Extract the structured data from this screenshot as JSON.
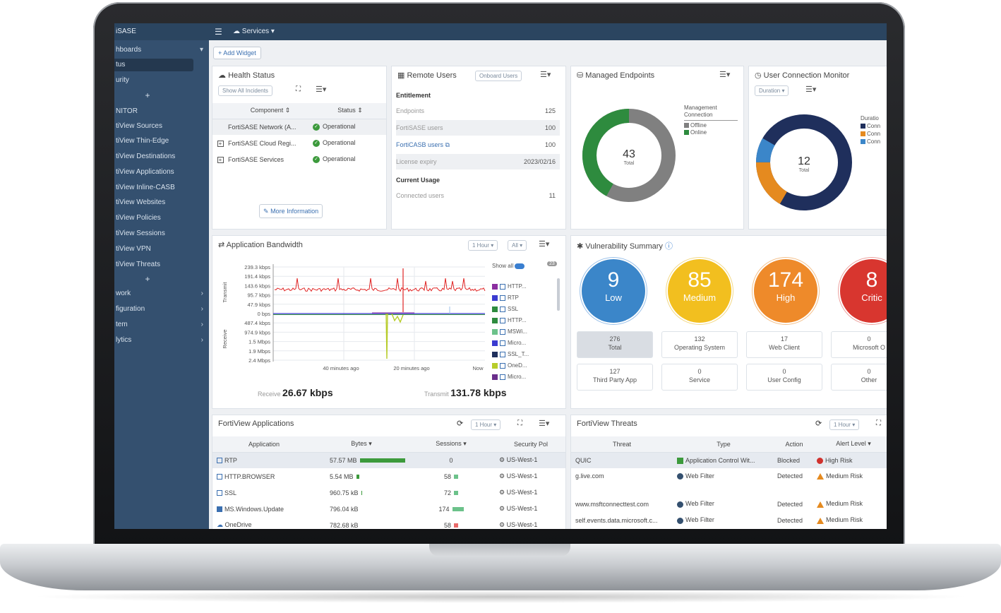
{
  "app": {
    "title": "iSASE",
    "services_label": "Services ▾"
  },
  "sidebar": {
    "items": [
      {
        "label": "hboards",
        "arrow": "▾"
      },
      {
        "label": "tus",
        "selected": true
      },
      {
        "label": "urity"
      },
      {
        "label": "NITOR"
      },
      {
        "label": "tiView Sources"
      },
      {
        "label": "tiView Thin-Edge"
      },
      {
        "label": "tiView Destinations"
      },
      {
        "label": "tiView Applications"
      },
      {
        "label": "tiView Inline-CASB"
      },
      {
        "label": "tiView Websites"
      },
      {
        "label": "tiView Policies"
      },
      {
        "label": "tiView Sessions"
      },
      {
        "label": "tiView VPN"
      },
      {
        "label": "tiView Threats"
      },
      {
        "label": "work",
        "arrow": "›"
      },
      {
        "label": "figuration",
        "arrow": "›"
      },
      {
        "label": "tem",
        "arrow": "›"
      },
      {
        "label": "lytics",
        "arrow": "›"
      }
    ]
  },
  "toolbar": {
    "add_widget": "+ Add Widget"
  },
  "health": {
    "title": "Health Status",
    "show_all": "Show All Incidents",
    "col_component": "Component ⇕",
    "col_status": "Status ⇕",
    "rows": [
      {
        "component": "FortiSASE Network (A...",
        "status": "Operational"
      },
      {
        "component": "FortiSASE Cloud Regi...",
        "status": "Operational"
      },
      {
        "component": "FortiSASE Services",
        "status": "Operational"
      }
    ],
    "more_info": "More Information"
  },
  "remote": {
    "title": "Remote Users",
    "onboard": "Onboard Users",
    "entitlement": "Entitlement",
    "rows": [
      {
        "label": "Endpoints",
        "value": "125"
      },
      {
        "label": "FortiSASE users",
        "value": "100"
      },
      {
        "label": "FortiCASB users",
        "value": "100"
      },
      {
        "label": "License expiry",
        "value": "2023/02/16"
      }
    ],
    "current_usage": "Current Usage",
    "connected_label": "Connected users",
    "connected_value": "11"
  },
  "endpoints": {
    "title": "Managed Endpoints",
    "total": "43",
    "total_label": "Total",
    "legend_title_1": "Management",
    "legend_title_2": "Connection",
    "legend": [
      {
        "label": "Offline",
        "color": "#808080"
      },
      {
        "label": "Online",
        "color": "#2e8b3e"
      }
    ]
  },
  "connection": {
    "title": "User Connection Monitor",
    "duration": "Duration ▾",
    "total": "12",
    "total_label": "Total",
    "legend_title": "Duratio",
    "legend": [
      {
        "label": "Conn",
        "color": "#1f2f5c"
      },
      {
        "label": "Conn",
        "color": "#e58a1f"
      },
      {
        "label": "Conn",
        "color": "#3b86c9"
      }
    ]
  },
  "bandwidth": {
    "title": "Application Bandwidth",
    "range": "1 Hour ▾",
    "filter": "All ▾",
    "y_ticks": [
      "239.3 kbps",
      "191.4 kbps",
      "143.6 kbps",
      "95.7 kbps",
      "47.9 kbps",
      "0 bps",
      "487.4 kbps",
      "974.9 kbps",
      "1.5 Mbps",
      "1.9 Mbps",
      "2.4 Mbps"
    ],
    "transmit_axis": "Transmit",
    "receive_axis": "Receive",
    "x_ticks": [
      "40 minutes ago",
      "20 minutes ago",
      "Now"
    ],
    "show_all": "Show all",
    "count": "23",
    "apps": [
      "HTTP...",
      "RTP",
      "SSL",
      "HTTP...",
      "MSWi...",
      "Micro...",
      "SSL_T...",
      "OneD...",
      "Micro..."
    ],
    "receive_label": "Receive",
    "receive_value": "26.67 kbps",
    "transmit_label": "Transmit",
    "transmit_value": "131.78 kbps"
  },
  "vuln": {
    "title": "Vulnerability Summary",
    "circles": [
      {
        "value": "9",
        "label": "Low"
      },
      {
        "value": "85",
        "label": "Medium"
      },
      {
        "value": "174",
        "label": "High"
      },
      {
        "value": "8",
        "label": "Critic"
      }
    ],
    "boxes": [
      {
        "value": "276",
        "label": "Total"
      },
      {
        "value": "132",
        "label": "Operating System"
      },
      {
        "value": "17",
        "label": "Web Client"
      },
      {
        "value": "0",
        "label": "Microsoft O"
      },
      {
        "value": "127",
        "label": "Third Party App"
      },
      {
        "value": "0",
        "label": "Service"
      },
      {
        "value": "0",
        "label": "User Config"
      },
      {
        "value": "0",
        "label": "Other"
      }
    ]
  },
  "apps": {
    "title": "FortiView Applications",
    "range": "1 Hour ▾",
    "cols": [
      "Application",
      "Bytes ▾",
      "Sessions ▾",
      "Security Pol"
    ],
    "rows": [
      {
        "app": "RTP",
        "bytes": "57.57 MB",
        "sessions": "0",
        "policy": "US-West-1"
      },
      {
        "app": "HTTP.BROWSER",
        "bytes": "5.54 MB",
        "sessions": "58",
        "policy": "US-West-1"
      },
      {
        "app": "SSL",
        "bytes": "960.75 kB",
        "sessions": "72",
        "policy": "US-West-1"
      },
      {
        "app": "MS.Windows.Update",
        "bytes": "796.04 kB",
        "sessions": "174",
        "policy": "US-West-1"
      },
      {
        "app": "OneDrive",
        "bytes": "782.68 kB",
        "sessions": "58",
        "policy": "US-West-1"
      }
    ]
  },
  "threats": {
    "title": "FortiView Threats",
    "range": "1 Hour ▾",
    "cols": [
      "Threat",
      "Type",
      "Action",
      "Alert Level ▾"
    ],
    "rows": [
      {
        "threat": "QUIC",
        "type": "Application Control Wit...",
        "action": "Blocked",
        "level": "High Risk"
      },
      {
        "threat": "g.live.com",
        "type": "Web Filter",
        "action": "Detected",
        "level": "Medium Risk"
      },
      {
        "threat": "www.msftconnecttest.com",
        "type": "Web Filter",
        "action": "Detected",
        "level": "Medium Risk"
      },
      {
        "threat": "self.events.data.microsoft.c...",
        "type": "Web Filter",
        "action": "Detected",
        "level": "Medium Risk"
      }
    ]
  }
}
